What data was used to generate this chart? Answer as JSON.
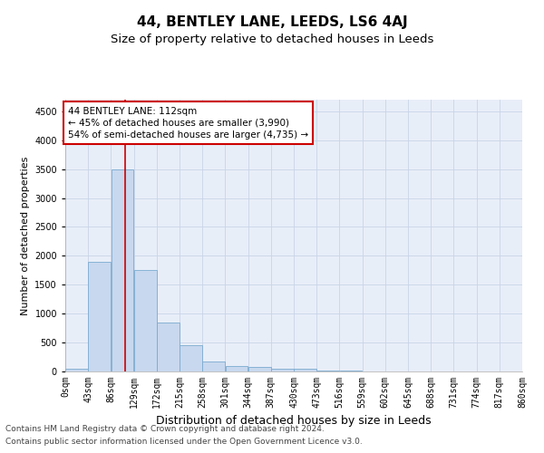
{
  "title": "44, BENTLEY LANE, LEEDS, LS6 4AJ",
  "subtitle": "Size of property relative to detached houses in Leeds",
  "xlabel": "Distribution of detached houses by size in Leeds",
  "ylabel": "Number of detached properties",
  "bar_color": "#c8d8ee",
  "bar_edge_color": "#7aaad0",
  "grid_color": "#c8d4e8",
  "background_color": "#e8eef8",
  "bins": [
    0,
    43,
    86,
    129,
    172,
    215,
    258,
    301,
    344,
    387,
    430,
    473,
    516,
    559,
    602,
    645,
    688,
    731,
    774,
    817,
    860
  ],
  "tick_labels": [
    "0sqm",
    "43sqm",
    "86sqm",
    "129sqm",
    "172sqm",
    "215sqm",
    "258sqm",
    "301sqm",
    "344sqm",
    "387sqm",
    "430sqm",
    "473sqm",
    "516sqm",
    "559sqm",
    "602sqm",
    "645sqm",
    "688sqm",
    "731sqm",
    "774sqm",
    "817sqm",
    "860sqm"
  ],
  "bar_values": [
    50,
    1900,
    3500,
    1750,
    850,
    450,
    175,
    100,
    75,
    50,
    50,
    20,
    10,
    5,
    5,
    5,
    5,
    3,
    3,
    2
  ],
  "ylim": [
    0,
    4700
  ],
  "yticks": [
    0,
    500,
    1000,
    1500,
    2000,
    2500,
    3000,
    3500,
    4000,
    4500
  ],
  "red_line_x": 112,
  "annotation_line1": "44 BENTLEY LANE: 112sqm",
  "annotation_line2": "← 45% of detached houses are smaller (3,990)",
  "annotation_line3": "54% of semi-detached houses are larger (4,735) →",
  "annotation_box_color": "#ffffff",
  "annotation_box_edge_color": "#cc0000",
  "red_line_color": "#cc0000",
  "footer_line1": "Contains HM Land Registry data © Crown copyright and database right 2024.",
  "footer_line2": "Contains public sector information licensed under the Open Government Licence v3.0.",
  "title_fontsize": 11,
  "subtitle_fontsize": 9.5,
  "tick_fontsize": 7,
  "ylabel_fontsize": 8,
  "xlabel_fontsize": 9,
  "annotation_fontsize": 7.5,
  "footer_fontsize": 6.5
}
